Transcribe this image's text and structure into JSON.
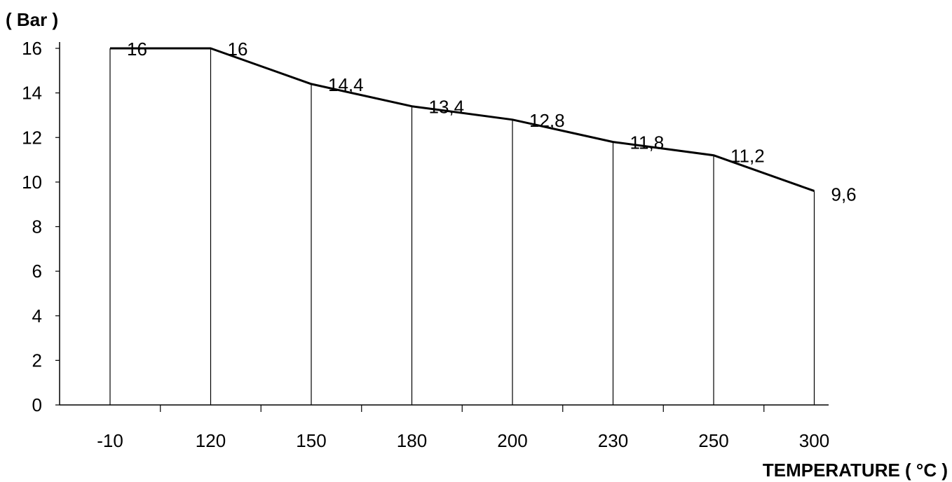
{
  "chart_data": {
    "type": "line",
    "title": "",
    "ylabel": "( Bar )",
    "xlabel": "TEMPERATURE ( °C )",
    "categories": [
      "-10",
      "120",
      "150",
      "180",
      "200",
      "230",
      "250",
      "300"
    ],
    "values": [
      16,
      16,
      14.4,
      13.4,
      12.8,
      11.8,
      11.2,
      9.6
    ],
    "data_labels": [
      "16",
      "16",
      "14,4",
      "13,4",
      "12,8",
      "11,8",
      "11,2",
      "9,6"
    ],
    "ylim": [
      0,
      16
    ],
    "yticks": [
      0,
      2,
      4,
      6,
      8,
      10,
      12,
      14,
      16
    ],
    "grid": false,
    "legend": "none"
  }
}
